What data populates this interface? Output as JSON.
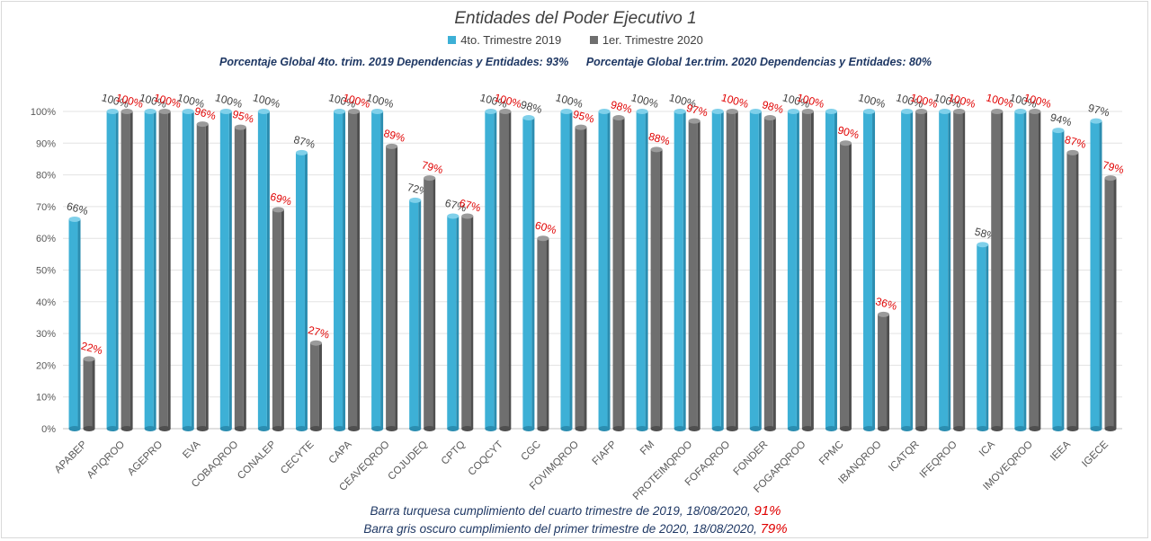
{
  "chart_data": {
    "type": "bar",
    "title": "Entidades del Poder Ejecutivo 1",
    "subtitle_left": "Porcentaje Global 4to. trim. 2019 Dependencias y Entidades: 93%",
    "subtitle_right": "Porcentaje Global  1er.trim.  2020 Dependencias y Entidades: 80%",
    "ylim": [
      0,
      100
    ],
    "yticks": [
      "0%",
      "10%",
      "20%",
      "30%",
      "40%",
      "50%",
      "60%",
      "70%",
      "80%",
      "90%",
      "100%"
    ],
    "grid": true,
    "legend_position": "top",
    "categories": [
      "APABEP",
      "APIQROO",
      "AGEPRO",
      "EVA",
      "COBAQROO",
      "CONALEP",
      "CECYTE",
      "CAPA",
      "CEAVEQROO",
      "COJUDEQ",
      "CPTQ",
      "COQCYT",
      "CGC",
      "FOVIMQROO",
      "FIAFP",
      "FM",
      "PROTEIMQROO",
      "FOFAQROO",
      "FONDER",
      "FOGARQROO",
      "FPMC",
      "IBANQROO",
      "ICATQR",
      "IFEQROO",
      "ICA",
      "IMOVEQROO",
      "IEEA",
      "IGECE"
    ],
    "series": [
      {
        "name": "4to. Trimestre 2019",
        "color": "#3db0d6",
        "label_color": "#404040",
        "values": [
          66,
          100,
          100,
          100,
          100,
          100,
          87,
          100,
          100,
          72,
          67,
          100,
          98,
          100,
          100,
          100,
          100,
          100,
          100,
          100,
          100,
          100,
          100,
          100,
          58,
          100,
          94,
          97
        ],
        "labels": [
          "66%",
          "100%",
          "100%",
          "100%",
          "100%",
          "100%",
          "87%",
          "100%",
          "100%",
          "72%",
          "67%",
          "100%",
          "98%",
          "100%",
          "",
          "100%",
          "100%",
          "",
          "",
          "100%",
          "",
          "100%",
          "100%",
          "100%",
          "58%",
          "100%",
          "94%",
          "97%"
        ]
      },
      {
        "name": "1er. Trimestre 2020",
        "color": "#6f6f6f",
        "label_color": "#e00000",
        "values": [
          22,
          100,
          100,
          96,
          95,
          69,
          27,
          100,
          89,
          79,
          67,
          100,
          60,
          95,
          98,
          88,
          97,
          100,
          98,
          100,
          90,
          36,
          100,
          100,
          100,
          100,
          87,
          79
        ],
        "labels": [
          "22%",
          "100%",
          "100%",
          "96%",
          "95%",
          "69%",
          "27%",
          "100%",
          "89%",
          "79%",
          "67%",
          "100%",
          "60%",
          "95%",
          "98%",
          "88%",
          "97%",
          "100%",
          "98%",
          "100%",
          "90%",
          "36%",
          "100%",
          "100%",
          "100%",
          "100%",
          "87%",
          "79%"
        ]
      }
    ]
  },
  "footer": {
    "line1_text": "Barra turquesa  cumplimiento  del cuarto trimestre  de 2019,    18/08/2020,",
    "line1_value": "91%",
    "line2_text": "Barra gris oscuro  cumplimiento  del primer trimestre  de 2020,  18/08/2020,",
    "line2_value": "79%"
  }
}
